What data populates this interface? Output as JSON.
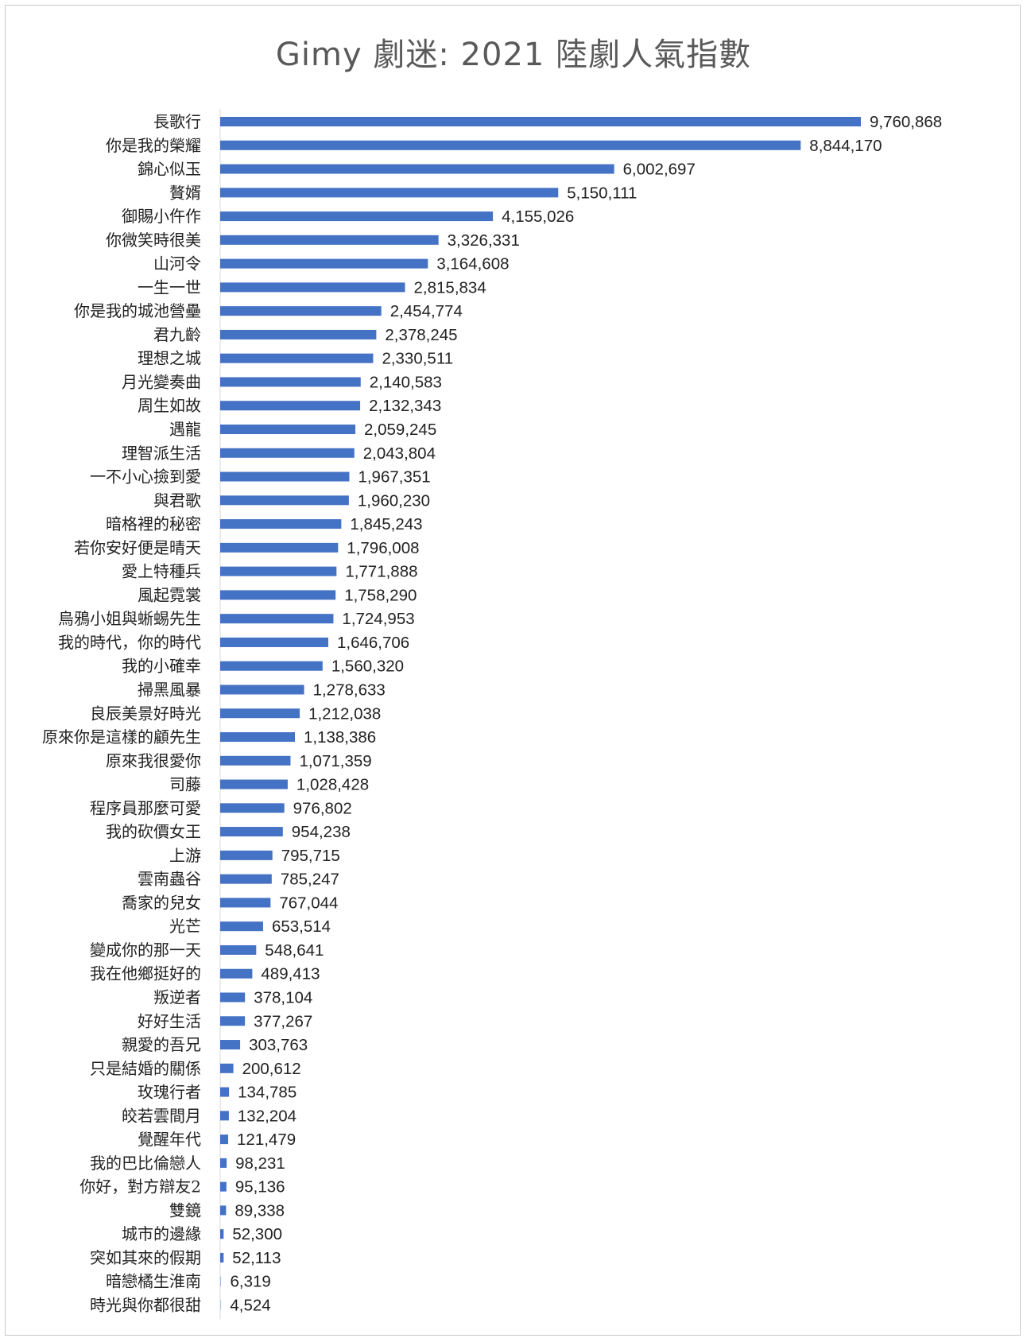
{
  "chart_data": {
    "type": "bar",
    "orientation": "horizontal",
    "title": "Gimy 劇迷: 2021 陸劇人氣指數",
    "bar_color": "#4472C4",
    "grid": false,
    "legend": "none",
    "xlim": [
      0,
      10000000
    ],
    "categories": [
      "長歌行",
      "你是我的榮耀",
      "錦心似玉",
      "贅婿",
      "御賜小仵作",
      "你微笑時很美",
      "山河令",
      "一生一世",
      "你是我的城池營壘",
      "君九齡",
      "理想之城",
      "月光變奏曲",
      "周生如故",
      "遇龍",
      "理智派生活",
      "一不小心撿到愛",
      "與君歌",
      "暗格裡的秘密",
      "若你安好便是晴天",
      "愛上特種兵",
      "風起霓裳",
      "烏鴉小姐與蜥蜴先生",
      "我的時代，你的時代",
      "我的小確幸",
      "掃黑風暴",
      "良辰美景好時光",
      "原來你是這樣的顧先生",
      "原來我很愛你",
      "司藤",
      "程序員那麼可愛",
      "我的砍價女王",
      "上游",
      "雲南蟲谷",
      "喬家的兒女",
      "光芒",
      "變成你的那一天",
      "我在他鄉挺好的",
      "叛逆者",
      "好好生活",
      "親愛的吾兄",
      "只是結婚的關係",
      "玫瑰行者",
      "皎若雲間月",
      "覺醒年代",
      "我的巴比倫戀人",
      "你好，對方辯友2",
      "雙鏡",
      "城市的邊緣",
      "突如其來的假期",
      "暗戀橘生淮南",
      "時光與你都很甜"
    ],
    "values": [
      9760868,
      8844170,
      6002697,
      5150111,
      4155026,
      3326331,
      3164608,
      2815834,
      2454774,
      2378245,
      2330511,
      2140583,
      2132343,
      2059245,
      2043804,
      1967351,
      1960230,
      1845243,
      1796008,
      1771888,
      1758290,
      1724953,
      1646706,
      1560320,
      1278633,
      1212038,
      1138386,
      1071359,
      1028428,
      976802,
      954238,
      795715,
      785247,
      767044,
      653514,
      548641,
      489413,
      378104,
      377267,
      303763,
      200612,
      134785,
      132204,
      121479,
      98231,
      95136,
      89338,
      52300,
      52113,
      6319,
      4524
    ],
    "value_labels": [
      "9,760,868",
      "8,844,170",
      "6,002,697",
      "5,150,111",
      "4,155,026",
      "3,326,331",
      "3,164,608",
      "2,815,834",
      "2,454,774",
      "2,378,245",
      "2,330,511",
      "2,140,583",
      "2,132,343",
      "2,059,245",
      "2,043,804",
      "1,967,351",
      "1,960,230",
      "1,845,243",
      "1,796,008",
      "1,771,888",
      "1,758,290",
      "1,724,953",
      "1,646,706",
      "1,560,320",
      "1,278,633",
      "1,212,038",
      "1,138,386",
      "1,071,359",
      "1,028,428",
      "976,802",
      "954,238",
      "795,715",
      "785,247",
      "767,044",
      "653,514",
      "548,641",
      "489,413",
      "378,104",
      "377,267",
      "303,763",
      "200,612",
      "134,785",
      "132,204",
      "121,479",
      "98,231",
      "95,136",
      "89,338",
      "52,300",
      "52,113",
      "6,319",
      "4,524"
    ]
  }
}
